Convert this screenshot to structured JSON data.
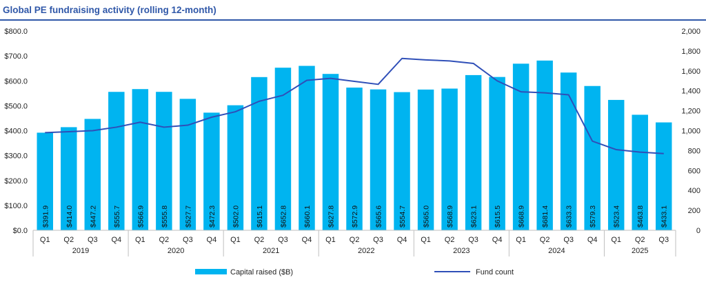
{
  "chart_data": {
    "type": "bar",
    "title": "Global PE fundraising activity (rolling 12-month)",
    "years": [
      {
        "label": "2019",
        "quarters": 4
      },
      {
        "label": "2020",
        "quarters": 4
      },
      {
        "label": "2021",
        "quarters": 4
      },
      {
        "label": "2022",
        "quarters": 4
      },
      {
        "label": "2023",
        "quarters": 4
      },
      {
        "label": "2024",
        "quarters": 4
      },
      {
        "label": "2025",
        "quarters": 3
      }
    ],
    "categories": [
      "Q1",
      "Q2",
      "Q3",
      "Q4",
      "Q1",
      "Q2",
      "Q3",
      "Q4",
      "Q1",
      "Q2",
      "Q3",
      "Q4",
      "Q1",
      "Q2",
      "Q3",
      "Q4",
      "Q1",
      "Q2",
      "Q3",
      "Q4",
      "Q1",
      "Q2",
      "Q3",
      "Q4",
      "Q1",
      "Q2",
      "Q3"
    ],
    "series": [
      {
        "name": "Capital raised ($B)",
        "type": "bar",
        "axis": "left",
        "color": "#00b4f0",
        "values": [
          391.9,
          414.0,
          447.2,
          555.7,
          566.9,
          555.8,
          527.7,
          472.3,
          502.0,
          615.1,
          652.8,
          660.1,
          627.8,
          572.9,
          565.6,
          554.7,
          565.0,
          568.9,
          623.1,
          615.5,
          668.9,
          681.4,
          633.3,
          579.3,
          523.4,
          463.8,
          433.1
        ],
        "labels": [
          "$391.9",
          "$414.0",
          "$447.2",
          "$555.7",
          "$566.9",
          "$555.8",
          "$527.7",
          "$472.3",
          "$502.0",
          "$615.1",
          "$652.8",
          "$660.1",
          "$627.8",
          "$572.9",
          "$565.6",
          "$554.7",
          "$565.0",
          "$568.9",
          "$623.1",
          "$615.5",
          "$668.9",
          "$681.4",
          "$633.3",
          "$579.3",
          "$523.4",
          "$463.8",
          "$433.1"
        ]
      },
      {
        "name": "Fund count",
        "type": "line",
        "axis": "right",
        "color": "#2f4fb8",
        "values": [
          980,
          990,
          1000,
          1035,
          1085,
          1035,
          1055,
          1135,
          1190,
          1295,
          1355,
          1505,
          1525,
          1495,
          1465,
          1725,
          1710,
          1700,
          1675,
          1500,
          1390,
          1380,
          1360,
          895,
          810,
          785,
          770
        ]
      }
    ],
    "y_left": {
      "min": 0,
      "max": 800,
      "ticks": [
        0,
        100,
        200,
        300,
        400,
        500,
        600,
        700,
        800
      ],
      "tick_labels": [
        "$0.0",
        "$100.0",
        "$200.0",
        "$300.0",
        "$400.0",
        "$500.0",
        "$600.0",
        "$700.0",
        "$800.0"
      ]
    },
    "y_right": {
      "min": 0,
      "max": 2000,
      "ticks": [
        0,
        200,
        400,
        600,
        800,
        1000,
        1200,
        1400,
        1600,
        1800,
        2000
      ],
      "tick_labels": [
        "0",
        "200",
        "400",
        "600",
        "800",
        "1,000",
        "1,200",
        "1,400",
        "1,600",
        "1,800",
        "2,000"
      ]
    },
    "grid": false,
    "legend_position": "bottom",
    "accent_color": "#2f57a8"
  }
}
